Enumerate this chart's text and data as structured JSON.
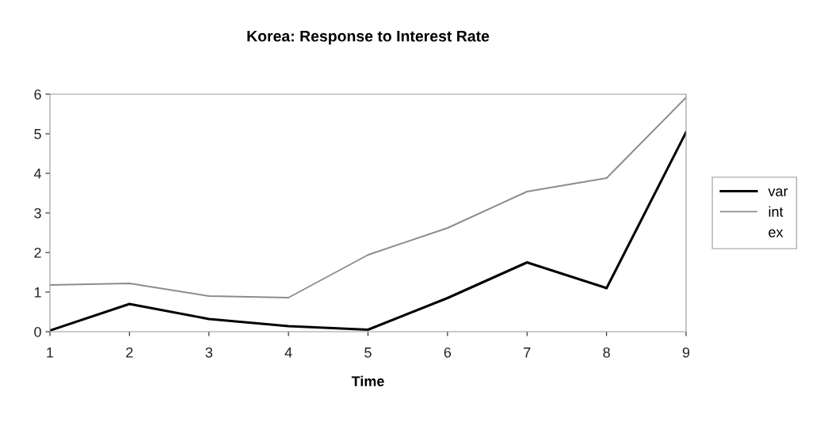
{
  "chart_data": {
    "type": "line",
    "title": "Korea: Response to Interest Rate",
    "xlabel": "Time",
    "x": [
      1,
      2,
      3,
      4,
      5,
      6,
      7,
      8,
      9
    ],
    "series": [
      {
        "name": "var",
        "color": "#000000",
        "values": [
          0.03,
          0.7,
          0.32,
          0.14,
          0.05,
          0.85,
          1.75,
          1.1,
          5.04
        ]
      },
      {
        "name": "int",
        "color": "#8c8c8c",
        "values": [
          1.18,
          1.22,
          0.9,
          0.86,
          1.94,
          2.62,
          3.54,
          3.88,
          5.92
        ]
      },
      {
        "name": "ex",
        "values": [
          null,
          null,
          null,
          null,
          null,
          null,
          null,
          null,
          null
        ]
      }
    ],
    "xlim": [
      1,
      9
    ],
    "xticks": [
      1,
      2,
      3,
      4,
      5,
      6,
      7,
      8,
      9
    ],
    "ylim": [
      0,
      6
    ],
    "yticks": [
      0,
      1,
      2,
      3,
      4,
      5,
      6
    ],
    "grid": false,
    "legend": "right",
    "marker": "none",
    "line_style": "solid"
  }
}
